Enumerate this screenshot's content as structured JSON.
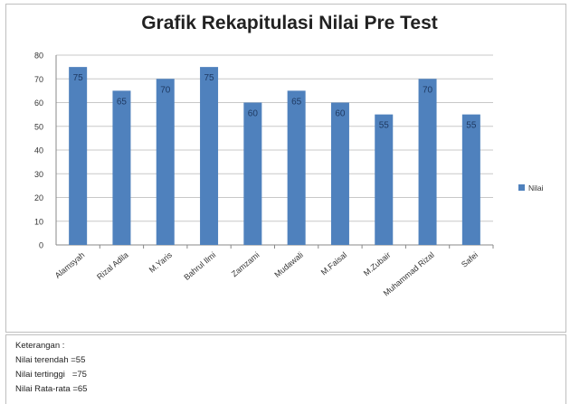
{
  "chart_data": {
    "type": "bar",
    "title": "Grafik Rekapitulasi Nilai Pre Test",
    "categories": [
      "Alamsyah",
      "Rizal Adila",
      "M.Yaris",
      "Bahrul Ilmi",
      "Zamzami",
      "Mudawali",
      "M.Faisal",
      "M.Zubair",
      "Muhammad Rizal",
      "Safei"
    ],
    "series": [
      {
        "name": "Nilai",
        "values": [
          75,
          65,
          70,
          75,
          60,
          65,
          60,
          55,
          70,
          55
        ]
      }
    ],
    "ylim": [
      0,
      80
    ],
    "yticks": [
      0,
      10,
      20,
      30,
      40,
      50,
      60,
      70,
      80
    ],
    "grid": true,
    "legend": "right",
    "bar_color": "#4f81bd",
    "label_color": "#1f3a63"
  },
  "notes": {
    "heading": "Keterangan :",
    "lowest": "Nilai terendah =55",
    "highest": "Nilai tertinggi   =75",
    "average": "Nilai Rata-rata =65"
  }
}
